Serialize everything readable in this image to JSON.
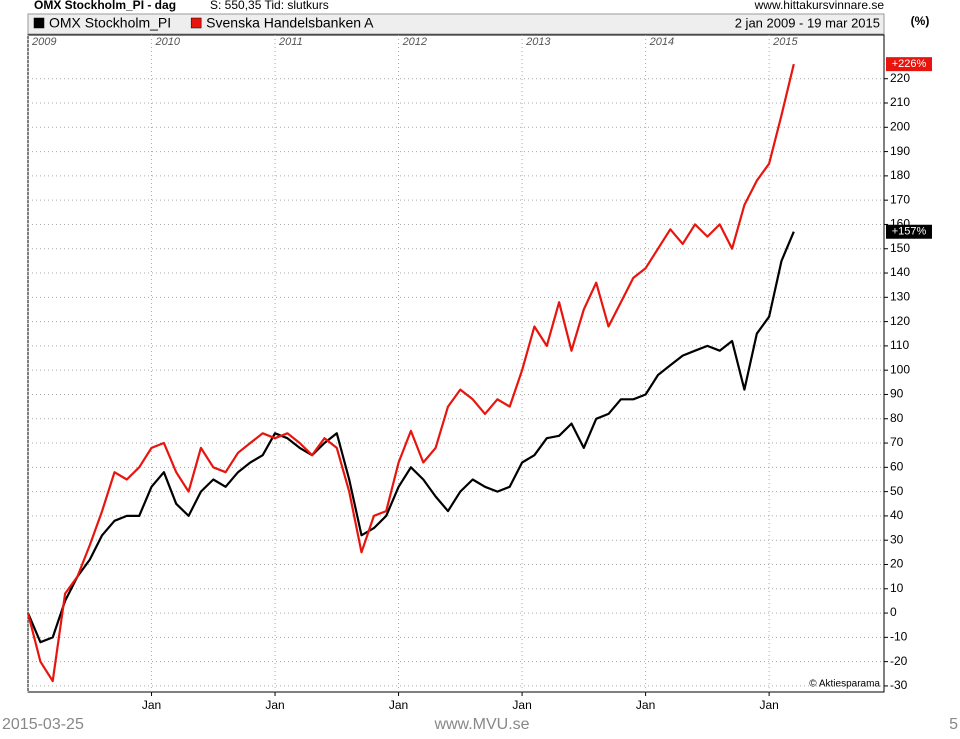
{
  "chart_data": {
    "type": "line",
    "title": "OMX Stockholm_PI - dag",
    "subtitle": "S: 550,35   Tid: slutkurs",
    "source": "www.hittakursvinnare.se",
    "date_range": "2 jan 2009 - 19 mar 2015",
    "y_label": "(%)",
    "credit": "© Aktiesparama",
    "x": [
      2009.0,
      2009.1,
      2009.2,
      2009.3,
      2009.4,
      2009.5,
      2009.6,
      2009.7,
      2009.8,
      2009.9,
      2010.0,
      2010.1,
      2010.2,
      2010.3,
      2010.4,
      2010.5,
      2010.6,
      2010.7,
      2010.8,
      2010.9,
      2011.0,
      2011.1,
      2011.2,
      2011.3,
      2011.4,
      2011.5,
      2011.6,
      2011.7,
      2011.8,
      2011.9,
      2012.0,
      2012.1,
      2012.2,
      2012.3,
      2012.4,
      2012.5,
      2012.6,
      2012.7,
      2012.8,
      2012.9,
      2013.0,
      2013.1,
      2013.2,
      2013.3,
      2013.4,
      2013.5,
      2013.6,
      2013.7,
      2013.8,
      2013.9,
      2014.0,
      2014.1,
      2014.2,
      2014.3,
      2014.4,
      2014.5,
      2014.6,
      2014.7,
      2014.8,
      2014.9,
      2015.0,
      2015.1,
      2015.2
    ],
    "series": [
      {
        "name": "OMX Stockholm_PI",
        "color": "#000000",
        "end_label": "+157%",
        "values": [
          0,
          -12,
          -10,
          5,
          15,
          22,
          32,
          38,
          40,
          40,
          52,
          58,
          45,
          40,
          50,
          55,
          52,
          58,
          62,
          65,
          74,
          72,
          68,
          65,
          70,
          74,
          55,
          32,
          35,
          40,
          52,
          60,
          55,
          48,
          42,
          50,
          55,
          52,
          50,
          52,
          62,
          65,
          72,
          73,
          78,
          68,
          80,
          82,
          88,
          88,
          90,
          98,
          102,
          106,
          108,
          110,
          108,
          112,
          92,
          115,
          122,
          145,
          157
        ]
      },
      {
        "name": "Svenska Handelsbanken A",
        "color": "#e8150e",
        "end_label": "+226%",
        "values": [
          0,
          -20,
          -28,
          8,
          15,
          28,
          42,
          58,
          55,
          60,
          68,
          70,
          58,
          50,
          68,
          60,
          58,
          66,
          70,
          74,
          72,
          74,
          70,
          65,
          72,
          68,
          50,
          25,
          40,
          42,
          62,
          75,
          62,
          68,
          85,
          92,
          88,
          82,
          88,
          85,
          100,
          118,
          110,
          128,
          108,
          125,
          136,
          118,
          128,
          138,
          142,
          150,
          158,
          152,
          160,
          155,
          160,
          150,
          168,
          178,
          185,
          205,
          226
        ]
      }
    ],
    "xlim": [
      2009.0,
      2015.93
    ],
    "xticks": [
      2009,
      2010,
      2011,
      2012,
      2013,
      2014,
      2015
    ],
    "xticks_bottom": [
      {
        "value": 2010,
        "label": "Jan"
      },
      {
        "value": 2011,
        "label": "Jan"
      },
      {
        "value": 2012,
        "label": "Jan"
      },
      {
        "value": 2013,
        "label": "Jan"
      },
      {
        "value": 2014,
        "label": "Jan"
      },
      {
        "value": 2015,
        "label": "Jan"
      }
    ],
    "ylim": [
      -32.5,
      238
    ],
    "yticks": [
      -30,
      -20,
      -10,
      0,
      10,
      20,
      30,
      40,
      50,
      60,
      70,
      80,
      90,
      100,
      110,
      120,
      130,
      140,
      150,
      160,
      170,
      180,
      190,
      200,
      210,
      220
    ],
    "grid": true
  },
  "footer": {
    "date": "2015-03-25",
    "site": "www.MVU.se",
    "page": "5"
  }
}
